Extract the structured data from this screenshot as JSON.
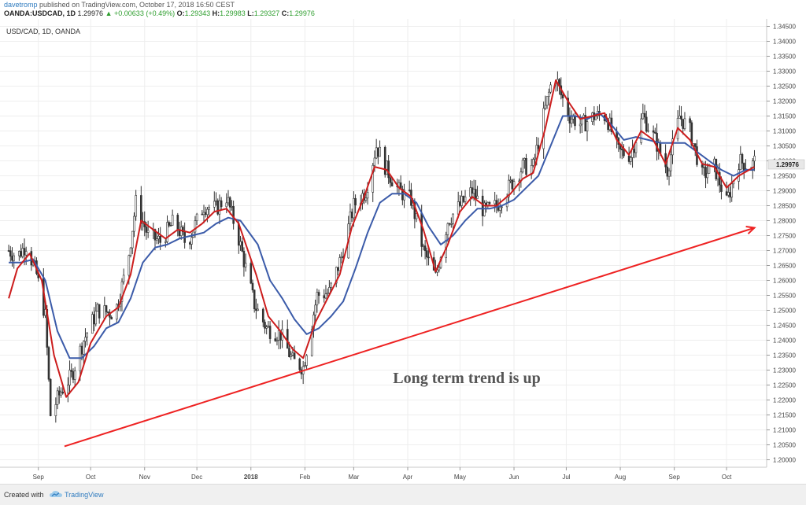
{
  "header": {
    "author": "davetromp",
    "published": "published on TradingView.com, October 17, 2018 16:50 CEST",
    "symbol": "OANDA:USDCAD, 1D",
    "last": "1.29976",
    "change": "+0.00633 (+0.49%)",
    "o_label": "O:",
    "o_value": "1.29343",
    "h_label": "H:",
    "h_value": "1.29983",
    "l_label": "L:",
    "l_value": "1.29327",
    "c_label": "C:",
    "c_value": "1.29976"
  },
  "chart_title": "USD/CAD, 1D, OANDA",
  "annotation": "Long term trend is up",
  "last_price_label": "1.29976",
  "footer": {
    "created_with": "Created with",
    "brand": "TradingView"
  },
  "colors": {
    "candles": "#333333",
    "ma_fast": "#cc1d1d",
    "ma_slow": "#3b5ba9",
    "trendline": "#ee2222",
    "annotation": "#555555",
    "price_label_bg": "#e8e8e8"
  },
  "chart_data": {
    "type": "line",
    "series": [],
    "price_path": [
      [
        "2017-08-15",
        1.27
      ],
      [
        "2017-08-20",
        1.268
      ],
      [
        "2017-08-25",
        1.272
      ],
      [
        "2017-08-31",
        1.262
      ],
      [
        "2017-09-05",
        1.248
      ],
      [
        "2017-09-08",
        1.215
      ],
      [
        "2017-09-14",
        1.223
      ],
      [
        "2017-09-20",
        1.228
      ],
      [
        "2017-09-27",
        1.24
      ],
      [
        "2017-10-05",
        1.25
      ],
      [
        "2017-10-15",
        1.249
      ],
      [
        "2017-10-22",
        1.265
      ],
      [
        "2017-10-27",
        1.286
      ],
      [
        "2017-11-03",
        1.275
      ],
      [
        "2017-11-10",
        1.273
      ],
      [
        "2017-11-18",
        1.28
      ],
      [
        "2017-11-25",
        1.272
      ],
      [
        "2017-12-05",
        1.285
      ],
      [
        "2017-12-12",
        1.284
      ],
      [
        "2017-12-18",
        1.288
      ],
      [
        "2017-12-25",
        1.274
      ],
      [
        "2018-01-03",
        1.252
      ],
      [
        "2018-01-10",
        1.244
      ],
      [
        "2018-01-18",
        1.242
      ],
      [
        "2018-01-25",
        1.233
      ],
      [
        "2018-01-31",
        1.231
      ],
      [
        "2018-02-08",
        1.255
      ],
      [
        "2018-02-15",
        1.256
      ],
      [
        "2018-02-22",
        1.268
      ],
      [
        "2018-03-01",
        1.285
      ],
      [
        "2018-03-08",
        1.29
      ],
      [
        "2018-03-14",
        1.305
      ],
      [
        "2018-03-20",
        1.297
      ],
      [
        "2018-03-27",
        1.29
      ],
      [
        "2018-04-03",
        1.287
      ],
      [
        "2018-04-10",
        1.27
      ],
      [
        "2018-04-17",
        1.261
      ],
      [
        "2018-04-24",
        1.28
      ],
      [
        "2018-05-01",
        1.285
      ],
      [
        "2018-05-08",
        1.29
      ],
      [
        "2018-05-15",
        1.283
      ],
      [
        "2018-05-22",
        1.285
      ],
      [
        "2018-05-30",
        1.292
      ],
      [
        "2018-06-06",
        1.298
      ],
      [
        "2018-06-12",
        1.298
      ],
      [
        "2018-06-18",
        1.315
      ],
      [
        "2018-06-24",
        1.33
      ],
      [
        "2018-06-28",
        1.322
      ],
      [
        "2018-07-03",
        1.315
      ],
      [
        "2018-07-10",
        1.312
      ],
      [
        "2018-07-17",
        1.315
      ],
      [
        "2018-07-24",
        1.315
      ],
      [
        "2018-07-31",
        1.303
      ],
      [
        "2018-08-07",
        1.302
      ],
      [
        "2018-08-14",
        1.315
      ],
      [
        "2018-08-21",
        1.307
      ],
      [
        "2018-08-28",
        1.297
      ],
      [
        "2018-09-04",
        1.315
      ],
      [
        "2018-09-10",
        1.31
      ],
      [
        "2018-09-17",
        1.295
      ],
      [
        "2018-09-24",
        1.298
      ],
      [
        "2018-10-01",
        1.286
      ],
      [
        "2018-10-08",
        1.3
      ],
      [
        "2018-10-15",
        1.298
      ],
      [
        "2018-10-17",
        1.29976
      ]
    ],
    "ma_fast_path": [
      [
        "2017-08-15",
        1.254
      ],
      [
        "2017-08-20",
        1.264
      ],
      [
        "2017-08-27",
        1.269
      ],
      [
        "2017-09-03",
        1.26
      ],
      [
        "2017-09-10",
        1.235
      ],
      [
        "2017-09-17",
        1.221
      ],
      [
        "2017-09-24",
        1.226
      ],
      [
        "2017-10-01",
        1.239
      ],
      [
        "2017-10-10",
        1.248
      ],
      [
        "2017-10-17",
        1.251
      ],
      [
        "2017-10-24",
        1.262
      ],
      [
        "2017-10-30",
        1.28
      ],
      [
        "2017-11-06",
        1.277
      ],
      [
        "2017-11-13",
        1.274
      ],
      [
        "2017-11-20",
        1.277
      ],
      [
        "2017-11-27",
        1.276
      ],
      [
        "2017-12-04",
        1.279
      ],
      [
        "2017-12-11",
        1.283
      ],
      [
        "2017-12-18",
        1.284
      ],
      [
        "2017-12-25",
        1.279
      ],
      [
        "2018-01-04",
        1.262
      ],
      [
        "2018-01-11",
        1.248
      ],
      [
        "2018-01-18",
        1.243
      ],
      [
        "2018-01-25",
        1.237
      ],
      [
        "2018-01-31",
        1.234
      ],
      [
        "2018-02-07",
        1.246
      ],
      [
        "2018-02-14",
        1.254
      ],
      [
        "2018-02-21",
        1.262
      ],
      [
        "2018-02-28",
        1.278
      ],
      [
        "2018-03-07",
        1.288
      ],
      [
        "2018-03-13",
        1.298
      ],
      [
        "2018-03-20",
        1.297
      ],
      [
        "2018-03-27",
        1.291
      ],
      [
        "2018-04-03",
        1.288
      ],
      [
        "2018-04-10",
        1.277
      ],
      [
        "2018-04-17",
        1.263
      ],
      [
        "2018-04-24",
        1.272
      ],
      [
        "2018-05-01",
        1.283
      ],
      [
        "2018-05-08",
        1.288
      ],
      [
        "2018-05-15",
        1.285
      ],
      [
        "2018-05-22",
        1.285
      ],
      [
        "2018-05-30",
        1.289
      ],
      [
        "2018-06-06",
        1.294
      ],
      [
        "2018-06-12",
        1.296
      ],
      [
        "2018-06-19",
        1.311
      ],
      [
        "2018-06-25",
        1.327
      ],
      [
        "2018-07-02",
        1.32
      ],
      [
        "2018-07-09",
        1.314
      ],
      [
        "2018-07-16",
        1.315
      ],
      [
        "2018-07-23",
        1.316
      ],
      [
        "2018-07-30",
        1.307
      ],
      [
        "2018-08-06",
        1.302
      ],
      [
        "2018-08-13",
        1.31
      ],
      [
        "2018-08-20",
        1.307
      ],
      [
        "2018-08-27",
        1.299
      ],
      [
        "2018-09-03",
        1.311
      ],
      [
        "2018-09-10",
        1.307
      ],
      [
        "2018-09-17",
        1.299
      ],
      [
        "2018-09-24",
        1.298
      ],
      [
        "2018-10-01",
        1.291
      ],
      [
        "2018-10-08",
        1.295
      ],
      [
        "2018-10-17",
        1.298
      ]
    ],
    "ma_slow_path": [
      [
        "2017-08-15",
        1.266
      ],
      [
        "2017-08-22",
        1.266
      ],
      [
        "2017-08-29",
        1.267
      ],
      [
        "2017-09-05",
        1.26
      ],
      [
        "2017-09-12",
        1.243
      ],
      [
        "2017-09-19",
        1.234
      ],
      [
        "2017-09-26",
        1.234
      ],
      [
        "2017-10-03",
        1.238
      ],
      [
        "2017-10-10",
        1.244
      ],
      [
        "2017-10-17",
        1.246
      ],
      [
        "2017-10-24",
        1.254
      ],
      [
        "2017-10-31",
        1.266
      ],
      [
        "2017-11-07",
        1.271
      ],
      [
        "2017-11-14",
        1.272
      ],
      [
        "2017-11-21",
        1.274
      ],
      [
        "2017-11-28",
        1.275
      ],
      [
        "2017-12-05",
        1.276
      ],
      [
        "2017-12-12",
        1.279
      ],
      [
        "2017-12-19",
        1.281
      ],
      [
        "2017-12-26",
        1.28
      ],
      [
        "2018-01-05",
        1.272
      ],
      [
        "2018-01-12",
        1.26
      ],
      [
        "2018-01-19",
        1.254
      ],
      [
        "2018-01-26",
        1.247
      ],
      [
        "2018-02-02",
        1.242
      ],
      [
        "2018-02-09",
        1.244
      ],
      [
        "2018-02-16",
        1.248
      ],
      [
        "2018-02-23",
        1.253
      ],
      [
        "2018-03-02",
        1.264
      ],
      [
        "2018-03-09",
        1.276
      ],
      [
        "2018-03-16",
        1.286
      ],
      [
        "2018-03-23",
        1.289
      ],
      [
        "2018-03-30",
        1.289
      ],
      [
        "2018-04-06",
        1.286
      ],
      [
        "2018-04-13",
        1.278
      ],
      [
        "2018-04-20",
        1.272
      ],
      [
        "2018-04-27",
        1.275
      ],
      [
        "2018-05-04",
        1.28
      ],
      [
        "2018-05-11",
        1.284
      ],
      [
        "2018-05-18",
        1.284
      ],
      [
        "2018-05-25",
        1.285
      ],
      [
        "2018-06-01",
        1.287
      ],
      [
        "2018-06-08",
        1.291
      ],
      [
        "2018-06-15",
        1.295
      ],
      [
        "2018-06-22",
        1.305
      ],
      [
        "2018-06-29",
        1.315
      ],
      [
        "2018-07-06",
        1.315
      ],
      [
        "2018-07-13",
        1.314
      ],
      [
        "2018-07-20",
        1.316
      ],
      [
        "2018-07-27",
        1.312
      ],
      [
        "2018-08-03",
        1.307
      ],
      [
        "2018-08-10",
        1.308
      ],
      [
        "2018-08-17",
        1.307
      ],
      [
        "2018-08-24",
        1.306
      ],
      [
        "2018-08-31",
        1.306
      ],
      [
        "2018-09-07",
        1.306
      ],
      [
        "2018-09-14",
        1.303
      ],
      [
        "2018-09-21",
        1.3
      ],
      [
        "2018-09-28",
        1.297
      ],
      [
        "2018-10-05",
        1.295
      ],
      [
        "2018-10-12",
        1.297
      ],
      [
        "2018-10-17",
        1.297
      ]
    ],
    "trendline": {
      "start": [
        "2017-09-16",
        1.2045
      ],
      "end": [
        "2018-10-17",
        1.2776
      ]
    },
    "x_range": [
      "2017-08-10",
      "2018-10-24"
    ],
    "ylim": [
      1.1975,
      1.3475
    ],
    "y_ticks": [
      "1.20000",
      "1.20500",
      "1.21000",
      "1.21500",
      "1.22000",
      "1.22500",
      "1.23000",
      "1.23500",
      "1.24000",
      "1.24500",
      "1.25000",
      "1.25500",
      "1.26000",
      "1.26500",
      "1.27000",
      "1.27500",
      "1.28000",
      "1.28500",
      "1.29000",
      "1.29500",
      "1.30000",
      "1.30500",
      "1.31000",
      "1.31500",
      "1.32000",
      "1.32500",
      "1.33000",
      "1.33500",
      "1.34000",
      "1.34500"
    ],
    "x_ticks": [
      {
        "date": "2017-09-01",
        "label": "Sep"
      },
      {
        "date": "2017-10-01",
        "label": "Oct"
      },
      {
        "date": "2017-11-01",
        "label": "Nov"
      },
      {
        "date": "2017-12-01",
        "label": "Dec"
      },
      {
        "date": "2018-01-01",
        "label": "2018"
      },
      {
        "date": "2018-02-01",
        "label": "Feb"
      },
      {
        "date": "2018-03-01",
        "label": "Mar"
      },
      {
        "date": "2018-04-01",
        "label": "Apr"
      },
      {
        "date": "2018-05-01",
        "label": "May"
      },
      {
        "date": "2018-06-01",
        "label": "Jun"
      },
      {
        "date": "2018-07-01",
        "label": "Jul"
      },
      {
        "date": "2018-08-01",
        "label": "Aug"
      },
      {
        "date": "2018-09-01",
        "label": "Sep"
      },
      {
        "date": "2018-10-01",
        "label": "Oct"
      }
    ],
    "grid": true
  }
}
